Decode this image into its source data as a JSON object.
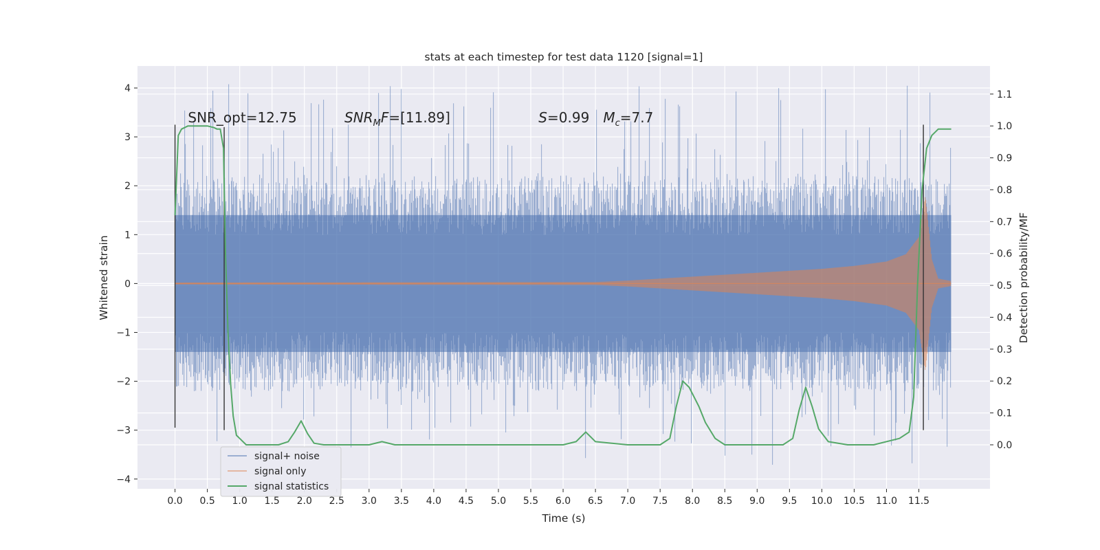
{
  "chart_data": {
    "type": "line",
    "title": "stats at each timestep for test data 1120 [signal=1]",
    "xlabel": "Time (s)",
    "ylabel": "Whitened strain",
    "y2label": "Detection probability/MF",
    "xlim": [
      -0.58,
      12.6
    ],
    "ylim": [
      -4.2,
      4.45
    ],
    "y2lim": [
      -0.138,
      1.188
    ],
    "x_ticks": [
      0.0,
      0.5,
      1.0,
      1.5,
      2.0,
      2.5,
      3.0,
      3.5,
      4.0,
      4.5,
      5.0,
      5.5,
      6.0,
      6.5,
      7.0,
      7.5,
      8.0,
      8.5,
      9.0,
      9.5,
      10.0,
      10.5,
      11.0,
      11.5
    ],
    "x_tick_labels": [
      "0.0",
      "0.5",
      "1.0",
      "1.5",
      "2.0",
      "2.5",
      "3.0",
      "3.5",
      "4.0",
      "4.5",
      "5.0",
      "5.5",
      "6.0",
      "6.5",
      "7.0",
      "7.5",
      "8.0",
      "8.5",
      "9.0",
      "9.5",
      "10.0",
      "10.5",
      "11.0",
      "11.5"
    ],
    "y_ticks": [
      -4,
      -3,
      -2,
      -1,
      0,
      1,
      2,
      3,
      4
    ],
    "y_tick_labels": [
      "−4",
      "−3",
      "−2",
      "−1",
      "0",
      "1",
      "2",
      "3",
      "4"
    ],
    "y2_ticks": [
      0.0,
      0.1,
      0.2,
      0.3,
      0.4,
      0.5,
      0.6,
      0.7,
      0.8,
      0.9,
      1.0,
      1.1
    ],
    "y2_tick_labels": [
      "0.0",
      "0.1",
      "0.2",
      "0.3",
      "0.4",
      "0.5",
      "0.6",
      "0.7",
      "0.8",
      "0.9",
      "1.0",
      "1.1"
    ],
    "grid": true,
    "legend_position": "lower-left",
    "series": [
      {
        "name": "signal+ noise",
        "color": "#4c72b0",
        "axis": "left",
        "x_range": [
          0.0,
          12.0
        ],
        "typical_band": [
          -2.2,
          2.2
        ],
        "dense_band": [
          -1.4,
          1.4
        ],
        "peak_range": [
          -3.8,
          4.1
        ]
      },
      {
        "name": "signal only",
        "color": "#dd8452",
        "axis": "left",
        "x": [
          0.0,
          6.5,
          7.0,
          7.5,
          8.0,
          8.5,
          9.0,
          9.5,
          10.0,
          10.5,
          11.0,
          11.3,
          11.5,
          11.6,
          11.7,
          11.8,
          12.0
        ],
        "envelope": [
          0.02,
          0.03,
          0.06,
          0.1,
          0.14,
          0.18,
          0.22,
          0.26,
          0.3,
          0.36,
          0.45,
          0.6,
          0.95,
          1.8,
          0.5,
          0.1,
          0.05
        ]
      },
      {
        "name": "signal statistics",
        "color": "#55a868",
        "axis": "right",
        "x": [
          0.0,
          0.05,
          0.1,
          0.2,
          0.3,
          0.4,
          0.5,
          0.6,
          0.65,
          0.7,
          0.75,
          0.78,
          0.82,
          0.86,
          0.9,
          0.95,
          1.0,
          1.1,
          1.3,
          1.6,
          1.75,
          1.85,
          1.95,
          2.05,
          2.15,
          2.3,
          2.6,
          3.0,
          3.2,
          3.4,
          4.0,
          5.0,
          6.0,
          6.2,
          6.35,
          6.5,
          7.0,
          7.2,
          7.5,
          7.65,
          7.75,
          7.85,
          7.95,
          8.1,
          8.2,
          8.35,
          8.5,
          9.0,
          9.4,
          9.55,
          9.65,
          9.75,
          9.85,
          9.95,
          10.1,
          10.4,
          10.8,
          11.2,
          11.35,
          11.42,
          11.48,
          11.55,
          11.62,
          11.7,
          11.8,
          11.9,
          12.0
        ],
        "values": [
          0.72,
          0.97,
          0.99,
          1.0,
          1.0,
          1.0,
          1.0,
          0.995,
          0.99,
          0.99,
          0.93,
          0.6,
          0.35,
          0.19,
          0.09,
          0.03,
          0.02,
          0.0,
          0.0,
          0.0,
          0.01,
          0.04,
          0.075,
          0.035,
          0.005,
          0.0,
          0.0,
          0.0,
          0.01,
          0.0,
          0.0,
          0.0,
          0.0,
          0.01,
          0.04,
          0.01,
          0.0,
          0.0,
          0.0,
          0.02,
          0.12,
          0.2,
          0.18,
          0.12,
          0.07,
          0.02,
          0.0,
          0.0,
          0.0,
          0.02,
          0.11,
          0.18,
          0.12,
          0.05,
          0.01,
          0.0,
          0.0,
          0.02,
          0.04,
          0.15,
          0.5,
          0.8,
          0.93,
          0.97,
          0.99,
          0.99,
          0.99
        ]
      }
    ],
    "vertical_markers": [
      {
        "x": 0.0,
        "y_range": [
          -2.95,
          3.25
        ],
        "color": "#333333"
      },
      {
        "x": 0.76,
        "y_range": [
          -3.0,
          3.2
        ],
        "color": "#333333"
      },
      {
        "x": 11.57,
        "y_range": [
          -3.0,
          3.25
        ],
        "color": "#333333"
      }
    ],
    "annotations": [
      {
        "text": "SNR_opt=12.75",
        "x": 0.2,
        "y": 3.3
      },
      {
        "text_parts": [
          {
            "t": "SNR",
            "i": true
          },
          {
            "t": "M",
            "i": true,
            "sub": true
          },
          {
            "t": "F",
            "i": true
          },
          {
            "t": "=[11.89]",
            "i": false
          }
        ],
        "x": 2.62,
        "y": 3.3
      },
      {
        "text_parts": [
          {
            "t": "S",
            "i": true
          },
          {
            "t": "=0.99",
            "i": false
          }
        ],
        "x": 5.62,
        "y": 3.3
      },
      {
        "text_parts": [
          {
            "t": "M",
            "i": true
          },
          {
            "t": "c",
            "i": true,
            "sub": true
          },
          {
            "t": "=7.7",
            "i": false
          }
        ],
        "x": 6.62,
        "y": 3.3
      }
    ]
  }
}
